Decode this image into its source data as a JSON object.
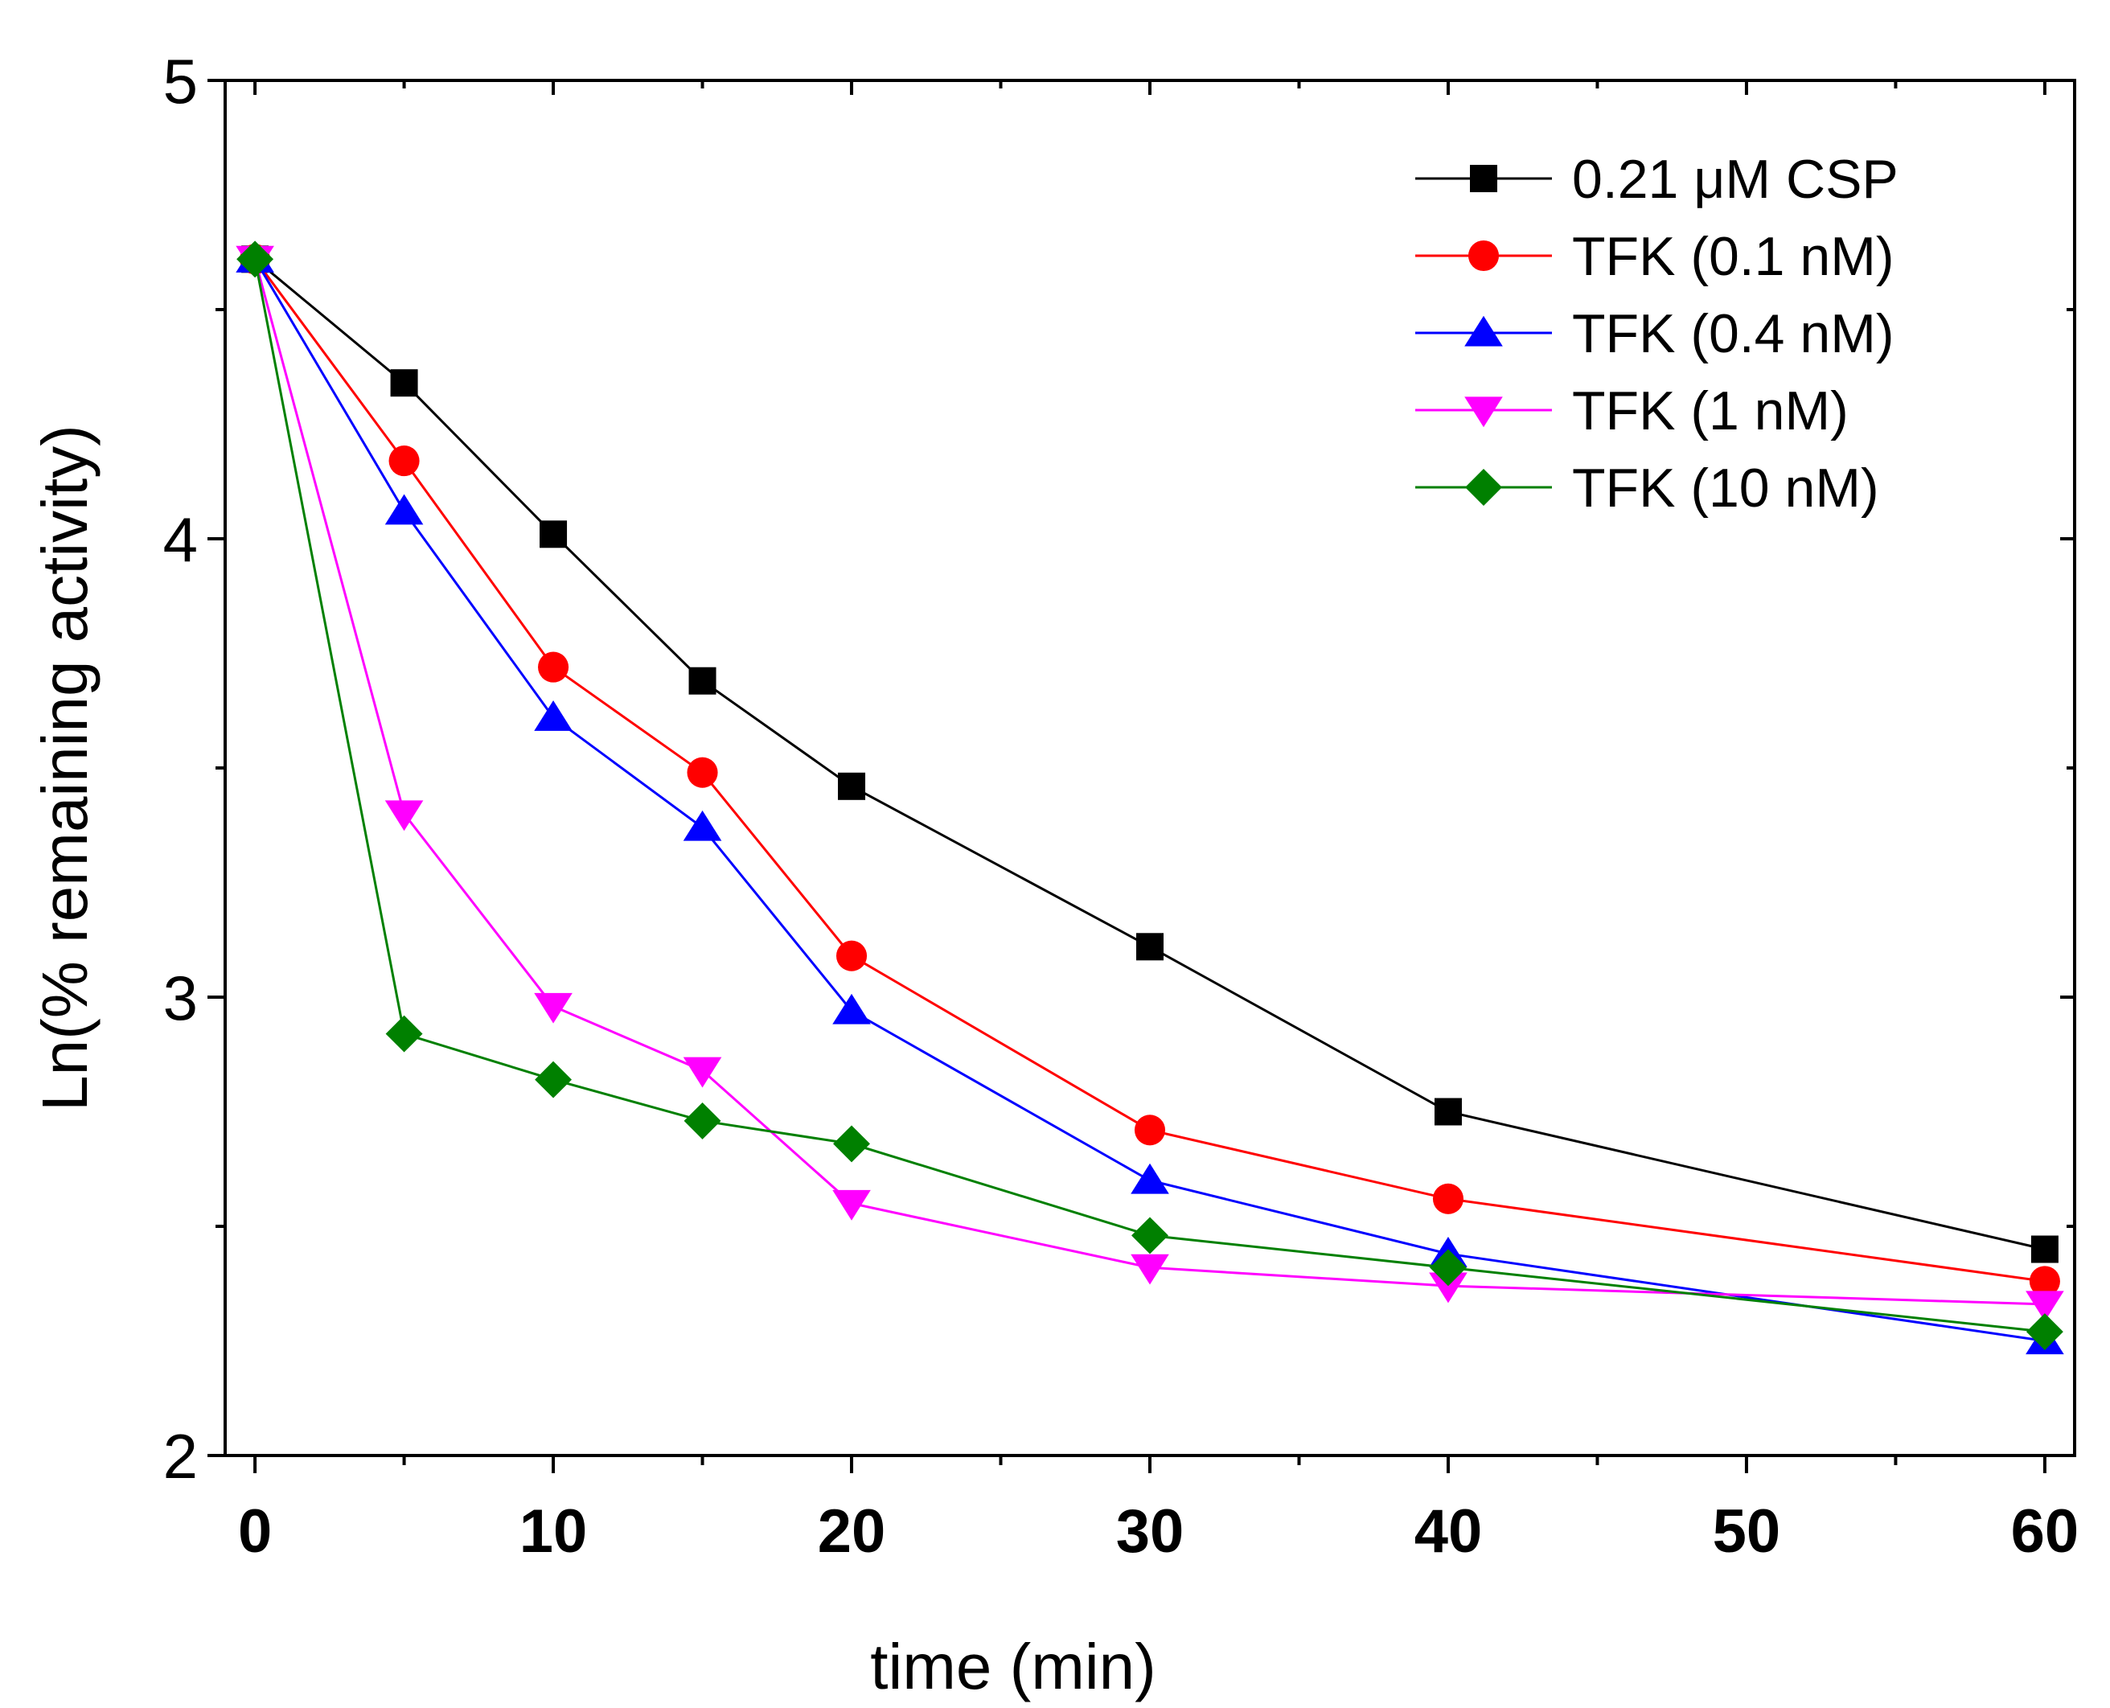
{
  "chart_data": {
    "type": "line",
    "title": "",
    "xlabel": "time (min)",
    "ylabel": "Ln(% remaining activity)",
    "xlim": [
      -1,
      61
    ],
    "ylim": [
      2,
      5
    ],
    "xticks": [
      0,
      10,
      20,
      30,
      40,
      50,
      60
    ],
    "xtick_labels": [
      "0",
      "10",
      "20",
      "30",
      "40",
      "50",
      "60"
    ],
    "yticks": [
      2,
      3,
      4,
      5
    ],
    "ytick_labels": [
      "2",
      "3",
      "4",
      "5"
    ],
    "grid": false,
    "legend_position": "top-right",
    "x": [
      0,
      5,
      10,
      15,
      20,
      30,
      40,
      60
    ],
    "series": [
      {
        "name": "0.21 μM CSP",
        "color": "#000000",
        "marker": "square",
        "values": [
          4.61,
          4.34,
          4.01,
          3.69,
          3.46,
          3.11,
          2.75,
          2.45
        ]
      },
      {
        "name": "TFK (0.1 nM)",
        "color": "#ff0000",
        "marker": "circle",
        "values": [
          4.61,
          4.17,
          3.72,
          3.49,
          3.09,
          2.71,
          2.56,
          2.38
        ]
      },
      {
        "name": "TFK (0.4 nM)",
        "color": "#0000ff",
        "marker": "triangle-up",
        "values": [
          4.61,
          4.06,
          3.61,
          3.37,
          2.97,
          2.6,
          2.44,
          2.25
        ]
      },
      {
        "name": "TFK (1 nM)",
        "color": "#ff00ff",
        "marker": "triangle-down",
        "values": [
          4.61,
          3.4,
          2.98,
          2.84,
          2.55,
          2.41,
          2.37,
          2.33
        ]
      },
      {
        "name": "TFK (10 nM)",
        "color": "#008000",
        "marker": "diamond",
        "values": [
          4.61,
          2.92,
          2.82,
          2.73,
          2.68,
          2.48,
          2.41,
          2.27
        ]
      }
    ]
  }
}
